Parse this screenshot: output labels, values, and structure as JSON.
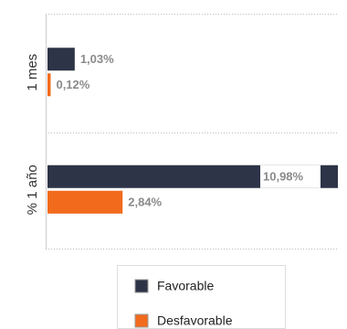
{
  "chart_data": {
    "type": "bar",
    "orientation": "horizontal",
    "categories": [
      "1 mes",
      "% 1 año"
    ],
    "series": [
      {
        "name": "Favorable",
        "color": "#2d3447",
        "values": [
          1.03,
          10.98
        ],
        "value_labels": [
          "1,03%",
          "10,98%"
        ]
      },
      {
        "name": "Desfavorable",
        "color": "#f26b1d",
        "values": [
          0.12,
          2.84
        ],
        "value_labels": [
          "0,12%",
          "2,84%"
        ]
      }
    ]
  }
}
